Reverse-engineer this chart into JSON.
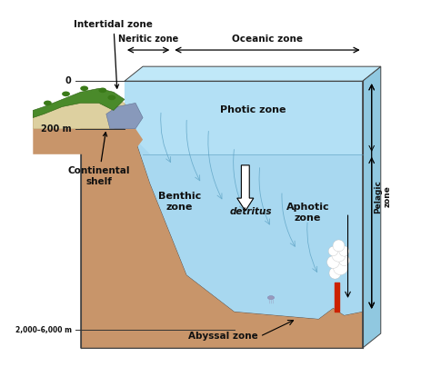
{
  "bg_color": "#ffffff",
  "fig_width": 4.74,
  "fig_height": 4.04,
  "dpi": 100,
  "zones": {
    "intertidal": "Intertidal zone",
    "neritic": "Neritic zone",
    "oceanic": "Oceanic zone",
    "photic": "Photic zone",
    "benthic": "Benthic\nzone",
    "aphotic": "Aphotic\nzone",
    "pelagic": "Pelagic\nzone",
    "abyssal": "Abyssal zone",
    "continental": "Continental\nshelf",
    "detritus": "detritus"
  },
  "depths": {
    "surface": "0",
    "shelf": "200 m",
    "deep": "2,000–6,000 m"
  },
  "colors": {
    "sediment": "#c8956a",
    "water_light": "#a8d8f0",
    "water_mid": "#78c0e0",
    "water_photic": "#b8e4f8",
    "grass_green": "#4a8a2a",
    "grass_dark": "#2a6010",
    "sand": "#ddd0a0",
    "rock": "#8899aa",
    "bg": "#ffffff",
    "box_edge": "#444444",
    "text_dark": "#111111",
    "red_vent": "#cc2200",
    "side_face": "#90c8e0",
    "top_face": "#c0e8f8"
  }
}
